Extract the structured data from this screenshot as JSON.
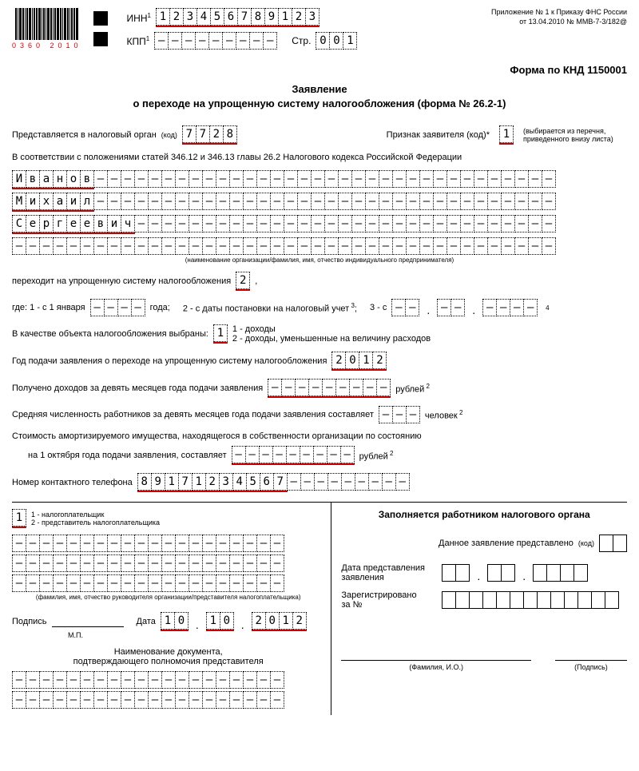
{
  "barcode_number": "0360 2010",
  "appendix": {
    "l1": "Приложение № 1 к Приказу ФНС России",
    "l2": "от 13.04.2010 № ММВ-7-3/182@"
  },
  "labels": {
    "inn": "ИНН",
    "kpp": "КПП",
    "page": "Стр.",
    "form_code": "Форма по КНД 1150001",
    "title_l1": "Заявление",
    "title_l2": "о переходе на упрощенную систему налогообложения (форма № 26.2-1)",
    "submit_to": "Представляется в налоговый орган",
    "code_word": "(код)",
    "applicant_sign": "Признак заявителя (код)*",
    "applicant_hint": "(выбирается из перечня, приведенного внизу листа)",
    "accordance": "В соответствии с положениями статей 346.12 и 346.13 главы 26.2 Налогового кодекса Российской Федерации",
    "name_note": "(наименование организации/фамилия, имя, отчество индивидуального предпринимателя)",
    "transition": "переходит на упрощенную систему налогообложения",
    "where": "где: 1 - с 1 января",
    "year_word": "года;",
    "opt2": "2 - с даты постановки на налоговый учет",
    "opt3": "3 - с",
    "object_label": "В качестве объекта налогообложения выбраны:",
    "obj1": "1 - доходы",
    "obj2": "2 - доходы, уменьшенные на величину расходов",
    "year_submit": "Год подачи заявления о переходе на упрощенную систему налогообложения",
    "income9": "Получено доходов за девять месяцев года подачи заявления",
    "rub": "рублей",
    "avg_emp": "Средняя численность работников за девять месяцев года подачи заявления составляет",
    "ppl": "человек",
    "amort": "Стоимость амортизируемого имущества, находящегося в собственности организации по состоянию",
    "amort2": "на 1 октября года подачи заявления, составляет",
    "phone": "Номер контактного телефона",
    "role1": "1 - налогоплательщик",
    "role2": "2 - представитель налогоплательщика",
    "fio_note": "(фамилия, имя, отчество руководителя организации/представителя налогоплательщика)",
    "signature": "Подпись",
    "mp": "М.П.",
    "date": "Дата",
    "doc_name": "Наименование документа,",
    "doc_name2": "подтверждающего полномочия представителя",
    "worker_title": "Заполняется работником налогового органа",
    "app_submitted": "Данное заявление представлено",
    "present_date": "Дата представления заявления",
    "registered": "Зарегистрировано",
    "za_no": "за №",
    "fio_short": "(Фамилия, И.О.)",
    "sig_short": "(Подпись)"
  },
  "values": {
    "inn": "123456789123",
    "kpp": "---------",
    "page": "001",
    "tax_org_code": "7728",
    "applicant_code": "1",
    "surname": "Иванов",
    "name": "Михаил",
    "patronymic": "Сергеевич",
    "transition_code": "2",
    "object_code": "1",
    "year": "2012",
    "phone": "89171234567",
    "role": "1",
    "date_d": "10",
    "date_m": "10",
    "date_y": "2012"
  },
  "layout": {
    "inn_len": 12,
    "kpp_len": 9,
    "page_len": 3,
    "org_code_len": 4,
    "name_row_len": 40,
    "year_len": 4,
    "date2_len": 2,
    "income_len": 9,
    "emp_len": 3,
    "amort_len": 9,
    "phone_len": 20,
    "rep_row_len": 20,
    "reg_len": 13,
    "doc_row_len": 20
  }
}
